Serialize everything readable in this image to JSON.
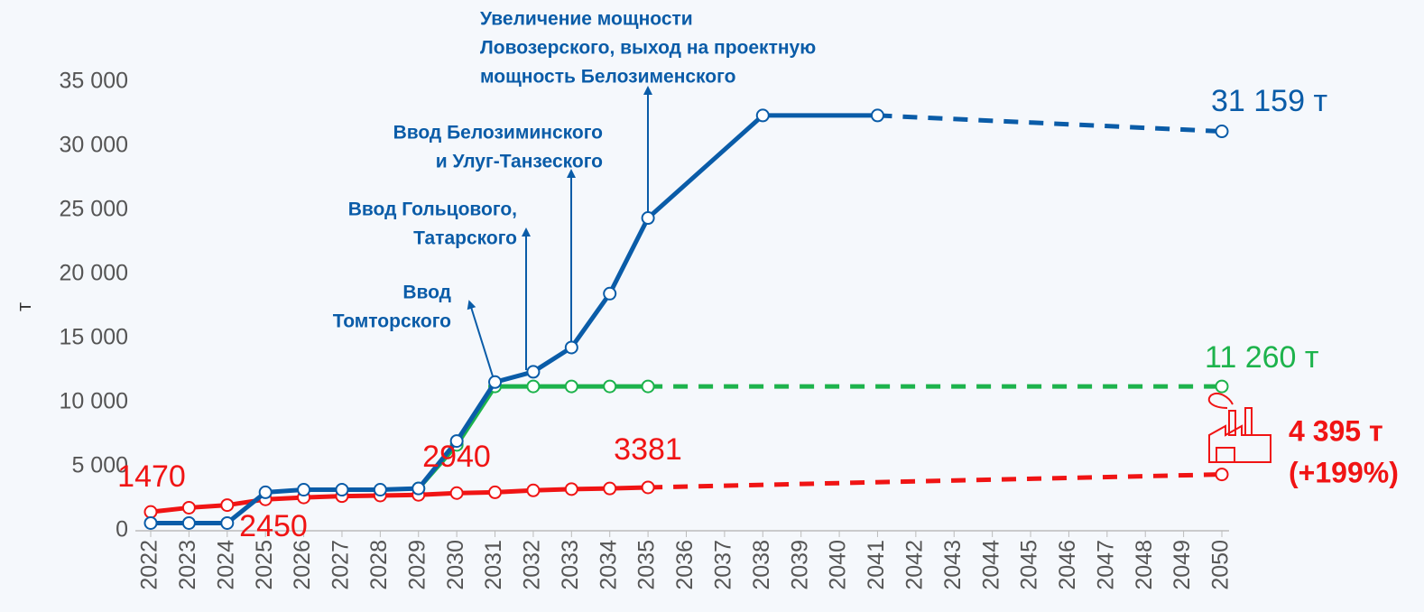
{
  "chart_data": {
    "type": "line",
    "y_label": "т",
    "xlim": [
      2022,
      2050
    ],
    "xticks": [
      2022,
      2023,
      2024,
      2025,
      2026,
      2027,
      2028,
      2029,
      2030,
      2031,
      2032,
      2033,
      2034,
      2035,
      2036,
      2037,
      2038,
      2039,
      2040,
      2041,
      2042,
      2043,
      2044,
      2045,
      2046,
      2047,
      2048,
      2049,
      2050
    ],
    "ylim": [
      0,
      35000
    ],
    "yticks": [
      0,
      {
        "value": 5000,
        "label": "5 000"
      },
      {
        "value": 10000,
        "label": "10 000"
      },
      {
        "value": 15000,
        "label": "15 000"
      },
      {
        "value": 20000,
        "label": "20 000"
      },
      {
        "value": 25000,
        "label": "25 000"
      },
      {
        "value": 30000,
        "label": "30 000"
      },
      {
        "value": 35000,
        "label": "35 000"
      }
    ],
    "grid": false,
    "series": [
      {
        "color": "#1db34c",
        "dashed_from": 2035,
        "x": [
          2029,
          2030,
          2031,
          2032,
          2033,
          2034,
          2035,
          2050
        ],
        "values": [
          3300,
          6700,
          11260,
          11260,
          11260,
          11260,
          11260,
          11260
        ],
        "value_labels": [
          null,
          null,
          null,
          null,
          null,
          null,
          null,
          "11 260 т"
        ]
      },
      {
        "color": "#f01414",
        "dashed_from": 2035,
        "x": [
          2022,
          2023,
          2024,
          2025,
          2026,
          2027,
          2028,
          2029,
          2030,
          2031,
          2032,
          2033,
          2034,
          2035,
          2050
        ],
        "values": [
          1470,
          1800,
          2000,
          2450,
          2600,
          2700,
          2750,
          2800,
          2940,
          3000,
          3150,
          3250,
          3300,
          3381,
          4395
        ],
        "value_labels": [
          "1470",
          null,
          null,
          "2450",
          null,
          null,
          null,
          null,
          "2940",
          null,
          null,
          null,
          null,
          "3381",
          "4 395 т"
        ]
      },
      {
        "color": "#0a5ca8",
        "dashed_from": 2041,
        "x": [
          2022,
          2023,
          2024,
          2025,
          2026,
          2027,
          2028,
          2029,
          2030,
          2031,
          2032,
          2033,
          2034,
          2035,
          2038,
          2041,
          2050
        ],
        "values": [
          600,
          600,
          600,
          3000,
          3200,
          3200,
          3200,
          3300,
          7000,
          11600,
          12400,
          14300,
          18500,
          24400,
          32400,
          32400,
          31159
        ],
        "value_labels": [
          null,
          null,
          null,
          null,
          null,
          null,
          null,
          null,
          null,
          null,
          null,
          null,
          null,
          null,
          null,
          null,
          "31 159 т"
        ]
      }
    ],
    "annotations": [
      [
        "Увеличение мощности",
        "Ловозерского, выход на проектную",
        "мощность Белозименского"
      ],
      [
        "Ввод Белозиминского",
        "и Улуг-Танзеского"
      ],
      [
        "Ввод Гольцового,",
        "Татарского"
      ],
      [
        "Ввод",
        "Томторского"
      ],
      [
        "(+199%)"
      ]
    ]
  }
}
